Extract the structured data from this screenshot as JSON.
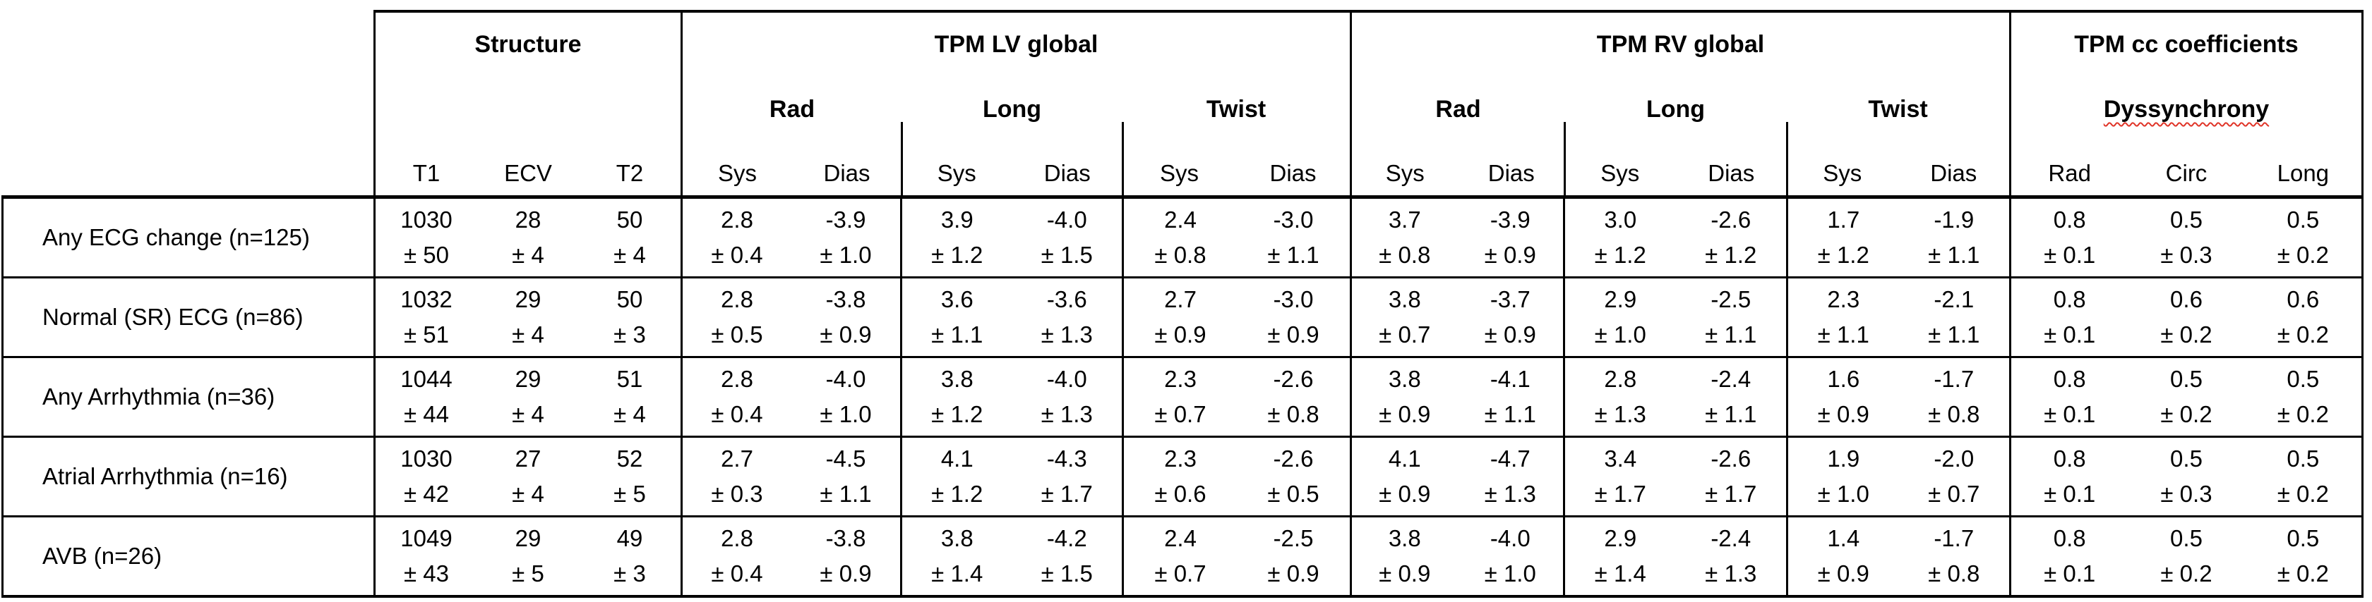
{
  "table": {
    "groups": {
      "structure": "Structure",
      "lv": "TPM LV global",
      "rv": "TPM RV global",
      "cc": "TPM cc coefficients"
    },
    "subgroups": {
      "lv": [
        "Rad",
        "Long",
        "Twist"
      ],
      "rv": [
        "Rad",
        "Long",
        "Twist"
      ],
      "cc": "Dyssynchrony"
    },
    "leaf": {
      "structure": [
        "T1",
        "ECV",
        "T2"
      ],
      "pair": [
        "Sys",
        "Dias"
      ],
      "cc": [
        "Rad",
        "Circ",
        "Long"
      ]
    },
    "rows": [
      {
        "label": "Any ECG change (n=125)",
        "structure": [
          {
            "v": "1030",
            "e": "± 50"
          },
          {
            "v": "28",
            "e": "± 4"
          },
          {
            "v": "50",
            "e": "± 4"
          }
        ],
        "lv": [
          {
            "v": "2.8",
            "e": "± 0.4"
          },
          {
            "v": "-3.9",
            "e": "± 1.0"
          },
          {
            "v": "3.9",
            "e": "± 1.2"
          },
          {
            "v": "-4.0",
            "e": "± 1.5"
          },
          {
            "v": "2.4",
            "e": "± 0.8"
          },
          {
            "v": "-3.0",
            "e": "± 1.1"
          }
        ],
        "rv": [
          {
            "v": "3.7",
            "e": "± 0.8"
          },
          {
            "v": "-3.9",
            "e": "± 0.9"
          },
          {
            "v": "3.0",
            "e": "± 1.2"
          },
          {
            "v": "-2.6",
            "e": "± 1.2"
          },
          {
            "v": "1.7",
            "e": "± 1.2"
          },
          {
            "v": "-1.9",
            "e": "± 1.1"
          }
        ],
        "cc": [
          {
            "v": "0.8",
            "e": "± 0.1"
          },
          {
            "v": "0.5",
            "e": "± 0.3"
          },
          {
            "v": "0.5",
            "e": "± 0.2"
          }
        ]
      },
      {
        "label": "Normal (SR) ECG (n=86)",
        "structure": [
          {
            "v": "1032",
            "e": "± 51"
          },
          {
            "v": "29",
            "e": "± 4"
          },
          {
            "v": "50",
            "e": "± 3"
          }
        ],
        "lv": [
          {
            "v": "2.8",
            "e": "± 0.5"
          },
          {
            "v": "-3.8",
            "e": "± 0.9"
          },
          {
            "v": "3.6",
            "e": "± 1.1"
          },
          {
            "v": "-3.6",
            "e": "± 1.3"
          },
          {
            "v": "2.7",
            "e": "± 0.9"
          },
          {
            "v": "-3.0",
            "e": "± 0.9"
          }
        ],
        "rv": [
          {
            "v": "3.8",
            "e": "± 0.7"
          },
          {
            "v": "-3.7",
            "e": "± 0.9"
          },
          {
            "v": "2.9",
            "e": "± 1.0"
          },
          {
            "v": "-2.5",
            "e": "± 1.1"
          },
          {
            "v": "2.3",
            "e": "± 1.1"
          },
          {
            "v": "-2.1",
            "e": "± 1.1"
          }
        ],
        "cc": [
          {
            "v": "0.8",
            "e": "± 0.1"
          },
          {
            "v": "0.6",
            "e": "± 0.2"
          },
          {
            "v": "0.6",
            "e": "± 0.2"
          }
        ]
      },
      {
        "label": "Any Arrhythmia (n=36)",
        "structure": [
          {
            "v": "1044",
            "e": "± 44"
          },
          {
            "v": "29",
            "e": "± 4"
          },
          {
            "v": "51",
            "e": "± 4"
          }
        ],
        "lv": [
          {
            "v": "2.8",
            "e": "± 0.4"
          },
          {
            "v": "-4.0",
            "e": "± 1.0"
          },
          {
            "v": "3.8",
            "e": "± 1.2"
          },
          {
            "v": "-4.0",
            "e": "± 1.3"
          },
          {
            "v": "2.3",
            "e": "± 0.7"
          },
          {
            "v": "-2.6",
            "e": "± 0.8"
          }
        ],
        "rv": [
          {
            "v": "3.8",
            "e": "± 0.9"
          },
          {
            "v": "-4.1",
            "e": "± 1.1"
          },
          {
            "v": "2.8",
            "e": "± 1.3"
          },
          {
            "v": "-2.4",
            "e": "± 1.1"
          },
          {
            "v": "1.6",
            "e": "± 0.9"
          },
          {
            "v": "-1.7",
            "e": "± 0.8"
          }
        ],
        "cc": [
          {
            "v": "0.8",
            "e": "± 0.1"
          },
          {
            "v": "0.5",
            "e": "± 0.2"
          },
          {
            "v": "0.5",
            "e": "± 0.2"
          }
        ]
      },
      {
        "label": "Atrial Arrhythmia (n=16)",
        "structure": [
          {
            "v": "1030",
            "e": "± 42"
          },
          {
            "v": "27",
            "e": "± 4"
          },
          {
            "v": "52",
            "e": "± 5"
          }
        ],
        "lv": [
          {
            "v": "2.7",
            "e": "± 0.3"
          },
          {
            "v": "-4.5",
            "e": "± 1.1"
          },
          {
            "v": "4.1",
            "e": "± 1.2"
          },
          {
            "v": "-4.3",
            "e": "± 1.7"
          },
          {
            "v": "2.3",
            "e": "± 0.6"
          },
          {
            "v": "-2.6",
            "e": "± 0.5"
          }
        ],
        "rv": [
          {
            "v": "4.1",
            "e": "± 0.9"
          },
          {
            "v": "-4.7",
            "e": "± 1.3"
          },
          {
            "v": "3.4",
            "e": "± 1.7"
          },
          {
            "v": "-2.6",
            "e": "± 1.7"
          },
          {
            "v": "1.9",
            "e": "± 1.0"
          },
          {
            "v": "-2.0",
            "e": "± 0.7"
          }
        ],
        "cc": [
          {
            "v": "0.8",
            "e": "± 0.1"
          },
          {
            "v": "0.5",
            "e": "± 0.3"
          },
          {
            "v": "0.5",
            "e": "± 0.2"
          }
        ]
      },
      {
        "label": "AVB (n=26)",
        "structure": [
          {
            "v": "1049",
            "e": "± 43"
          },
          {
            "v": "29",
            "e": "± 5"
          },
          {
            "v": "49",
            "e": "± 3"
          }
        ],
        "lv": [
          {
            "v": "2.8",
            "e": "± 0.4"
          },
          {
            "v": "-3.8",
            "e": "± 0.9"
          },
          {
            "v": "3.8",
            "e": "± 1.4"
          },
          {
            "v": "-4.2",
            "e": "± 1.5"
          },
          {
            "v": "2.4",
            "e": "± 0.7"
          },
          {
            "v": "-2.5",
            "e": "± 0.9"
          }
        ],
        "rv": [
          {
            "v": "3.8",
            "e": "± 0.9"
          },
          {
            "v": "-4.0",
            "e": "± 1.0"
          },
          {
            "v": "2.9",
            "e": "± 1.4"
          },
          {
            "v": "-2.4",
            "e": "± 1.3"
          },
          {
            "v": "1.4",
            "e": "± 0.9"
          },
          {
            "v": "-1.7",
            "e": "± 0.8"
          }
        ],
        "cc": [
          {
            "v": "0.8",
            "e": "± 0.1"
          },
          {
            "v": "0.5",
            "e": "± 0.2"
          },
          {
            "v": "0.5",
            "e": "± 0.2"
          }
        ]
      }
    ]
  },
  "colors": {
    "border": "#000000",
    "spellcheck_underline": "#e03428",
    "background": "#ffffff"
  }
}
